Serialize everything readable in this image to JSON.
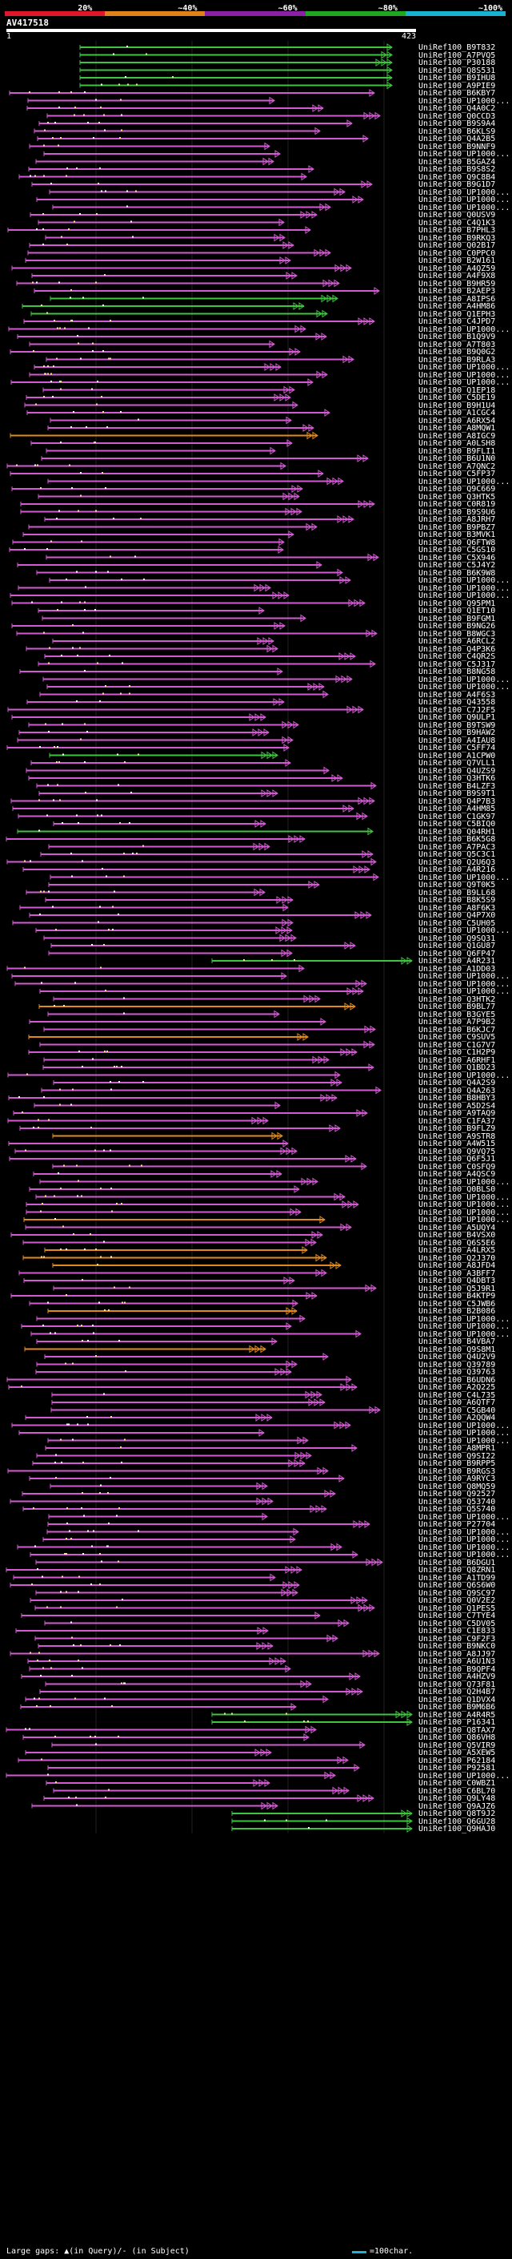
{
  "legend": {
    "labels": [
      "20%",
      "~40%",
      "~60%",
      "~80%",
      "~100%"
    ],
    "colors": [
      "#e0162b",
      "#e0821a",
      "#8b1fa6",
      "#1fa81f",
      "#17b3d1"
    ]
  },
  "query": {
    "title": "AV417518",
    "start": "1",
    "end": "423"
  },
  "hit_colors": {
    "magenta": "#d35ad3",
    "green": "#3ec43e",
    "orange": "#e08a1e"
  },
  "hits": [
    "UniRef100_B9T832",
    "UniRef100_A7PVQ5",
    "UniRef100_P30188",
    "UniRef100_Q8S531",
    "UniRef100_B9IHU8",
    "UniRef100_A9PIE9",
    "UniRef100_B6KBY7",
    "UniRef100_UP1000...",
    "UniRef100_Q4A0C2",
    "UniRef100_Q0CCD3",
    "UniRef100_B9S9A4",
    "UniRef100_B6KLS9",
    "UniRef100_Q4A2B5",
    "UniRef100_B9NNF9",
    "UniRef100_UP1000...",
    "UniRef100_B5GAZ4",
    "UniRef100_B9S8S2",
    "UniRef100_Q9C8B4",
    "UniRef100_B9G1D7",
    "UniRef100_UP1000...",
    "UniRef100_UP1000...",
    "UniRef100_UP1000...",
    "UniRef100_Q0USV9",
    "UniRef100_C4Q1K3",
    "UniRef100_B7PHL3",
    "UniRef100_B9RKQ3",
    "UniRef100_Q02B17",
    "UniRef100_C0PPC0",
    "UniRef100_B2W161",
    "UniRef100_A4QZ59",
    "UniRef100_A4F9X8",
    "UniRef100_B9HR59",
    "UniRef100_B2AEP3",
    "UniRef100_A8IPS6",
    "UniRef100_A4HM86",
    "UniRef100_Q1EPH3",
    "UniRef100_C4JPD7",
    "UniRef100_UP1000...",
    "UniRef100_B1Q9V9",
    "UniRef100_A7T803",
    "UniRef100_B9Q0G2",
    "UniRef100_B9RLA3",
    "UniRef100_UP1000...",
    "UniRef100_UP1000...",
    "UniRef100_UP1000...",
    "UniRef100_Q1EP18",
    "UniRef100_C5DE19",
    "UniRef100_B9H1U4",
    "UniRef100_A1CGC4",
    "UniRef100_A6RX54",
    "UniRef100_A8MQW1",
    "UniRef100_A8IGC9",
    "UniRef100_A0LSH8",
    "UniRef100_B9FLI1",
    "UniRef100_B6U1N0",
    "UniRef100_A7QNC2",
    "UniRef100_C5FP37",
    "UniRef100_UP1000...",
    "UniRef100_Q9C669",
    "UniRef100_Q3HTK5",
    "UniRef100_C0R819",
    "UniRef100_B9S9U6",
    "UniRef100_A8JRH7",
    "UniRef100_B9PBZ7",
    "UniRef100_B3MVK1",
    "UniRef100_Q6FTW8",
    "UniRef100_C5GS10",
    "UniRef100_C5X946",
    "UniRef100_C5J4Y2",
    "UniRef100_B6K9W8",
    "UniRef100_UP1000...",
    "UniRef100_UP1000...",
    "UniRef100_UP1000...",
    "UniRef100_Q95PM1",
    "UniRef100_Q1ET10",
    "UniRef100_B9FGM1",
    "UniRef100_B9NG26",
    "UniRef100_B8WGC3",
    "UniRef100_A6RCL2",
    "UniRef100_Q4P3K6",
    "UniRef100_C4QR2S",
    "UniRef100_C5J317",
    "UniRef100_B8NG58",
    "UniRef100_UP1000...",
    "UniRef100_UP1000...",
    "UniRef100_A4F6S3",
    "UniRef100_Q43558",
    "UniRef100_C7J2F5",
    "UniRef100_Q9ULP1",
    "UniRef100_B9TSW9",
    "UniRef100_B9HAW2",
    "UniRef100_A4IAU8",
    "UniRef100_C5FF74",
    "UniRef100_A1CPW0",
    "UniRef100_Q7VLL1",
    "UniRef100_Q4UZS9",
    "UniRef100_Q3HTK6",
    "UniRef100_B4LZF3",
    "UniRef100_B9S9T1",
    "UniRef100_Q4P7B3",
    "UniRef100_A4HM85",
    "UniRef100_C1GK97",
    "UniRef100_C5BIQ0",
    "UniRef100_Q04RH1",
    "UniRef100_B6K5G8",
    "UniRef100_A7PAC3",
    "UniRef100_Q5C3C1",
    "UniRef100_Q2U6Q3",
    "UniRef100_A4R216",
    "UniRef100_UP1000...",
    "UniRef100_Q9T0K5",
    "UniRef100_B9LL68",
    "UniRef100_B8K5S9",
    "UniRef100_A8F6K3",
    "UniRef100_Q4P7X0",
    "UniRef100_C5UH05",
    "UniRef100_UP1000...",
    "UniRef100_Q9SQ31",
    "UniRef100_Q1GU87",
    "UniRef100_Q6FP47",
    "UniRef100_A4R231",
    "UniRef100_A1DD03",
    "UniRef100_UP1000...",
    "UniRef100_UP1000...",
    "UniRef100_UP1000...",
    "UniRef100_Q3HTK2",
    "UniRef100_B9BL77",
    "UniRef100_B3GYE5",
    "UniRef100_A7P9B2",
    "UniRef100_B6KJC7",
    "UniRef100_C9SUV5",
    "UniRef100_C1G7V7",
    "UniRef100_C1H2P9",
    "UniRef100_A6RHF1",
    "UniRef100_Q1BD23",
    "UniRef100_UP1000...",
    "UniRef100_Q4A2S9",
    "UniRef100_Q4A263",
    "UniRef100_B8HBY3",
    "UniRef100_A5D2S4",
    "UniRef100_A9TAQ9",
    "UniRef100_C1FA37",
    "UniRef100_B9FLZ9",
    "UniRef100_A9STR8",
    "UniRef100_A4W515",
    "UniRef100_Q9VQ75",
    "UniRef100_Q6F5J1",
    "UniRef100_C0SFQ9",
    "UniRef100_A4QSC9",
    "UniRef100_UP1000...",
    "UniRef100_Q0BLS0",
    "UniRef100_UP1000...",
    "UniRef100_UP1000...",
    "UniRef100_UP1000...",
    "UniRef100_UP1000...",
    "UniRef100_A5UQY4",
    "UniRef100_B4VSX0",
    "UniRef100_Q6S5E6",
    "UniRef100_A4LRX5",
    "UniRef100_Q2J370",
    "UniRef100_A8JFD4",
    "UniRef100_A3BFF7",
    "UniRef100_Q4DBT3",
    "UniRef100_Q5J9R1",
    "UniRef100_B4KTP9",
    "UniRef100_C5JWB6",
    "UniRef100_B2B086",
    "UniRef100_UP1000...",
    "UniRef100_UP1000...",
    "UniRef100_UP1000...",
    "UniRef100_B4VBA7",
    "UniRef100_Q9S8M1",
    "UniRef100_Q4U2V9",
    "UniRef100_Q39789",
    "UniRef100_Q39763",
    "UniRef100_B6UDN6",
    "UniRef100_A2Q225",
    "UniRef100_C4L735",
    "UniRef100_A6QTF7",
    "UniRef100_C5GB40",
    "UniRef100_A2QQW4",
    "UniRef100_UP1000...",
    "UniRef100_UP1000...",
    "UniRef100_UP1000...",
    "UniRef100_A8MPR1",
    "UniRef100_Q9SI22",
    "UniRef100_B9RPP5",
    "UniRef100_B9RGS3",
    "UniRef100_A9RYC3",
    "UniRef100_Q8MQ59",
    "UniRef100_Q92527",
    "UniRef100_Q53740",
    "UniRef100_Q5S740",
    "UniRef100_UP1000...",
    "UniRef100_P27704",
    "UniRef100_UP1000...",
    "UniRef100_UP1000...",
    "UniRef100_UP1000...",
    "UniRef100_UP1000...",
    "UniRef100_B6DGU1",
    "UniRef100_Q8ZRN1",
    "UniRef100_A1TD99",
    "UniRef100_Q6S6W0",
    "UniRef100_Q9SC97",
    "UniRef100_Q0V2E2",
    "UniRef100_Q1PES5",
    "UniRef100_C7TYE4",
    "UniRef100_C5DV05",
    "UniRef100_C1E833",
    "UniRef100_C9F2F3",
    "UniRef100_B9NKC0",
    "UniRef100_A8JJ97",
    "UniRef100_A6U1N3",
    "UniRef100_B9QPF4",
    "UniRef100_A4HZV9",
    "UniRef100_Q73F81",
    "UniRef100_Q2H4B7",
    "UniRef100_Q1DVX4",
    "UniRef100_B9M6B6",
    "UniRef100_A4R4R5",
    "UniRef100_P16341",
    "UniRef100_Q8TAX7",
    "UniRef100_Q86VH8",
    "UniRef100_Q5VIR9",
    "UniRef100_A5XEW5",
    "UniRef100_P62184",
    "UniRef100_P92581",
    "UniRef100_UP1000...",
    "UniRef100_C0WBZ1",
    "UniRef100_C6BL70",
    "UniRef100_Q9LY48",
    "UniRef100_Q9AJZ6",
    "UniRef100_Q8T9J2",
    "UniRef100_Q6GU28",
    "UniRef100_Q9HAJ0"
  ],
  "footer": {
    "text": "Large gaps: ▲(in Query)/- (in Subject)",
    "scale_label": "=100char."
  }
}
